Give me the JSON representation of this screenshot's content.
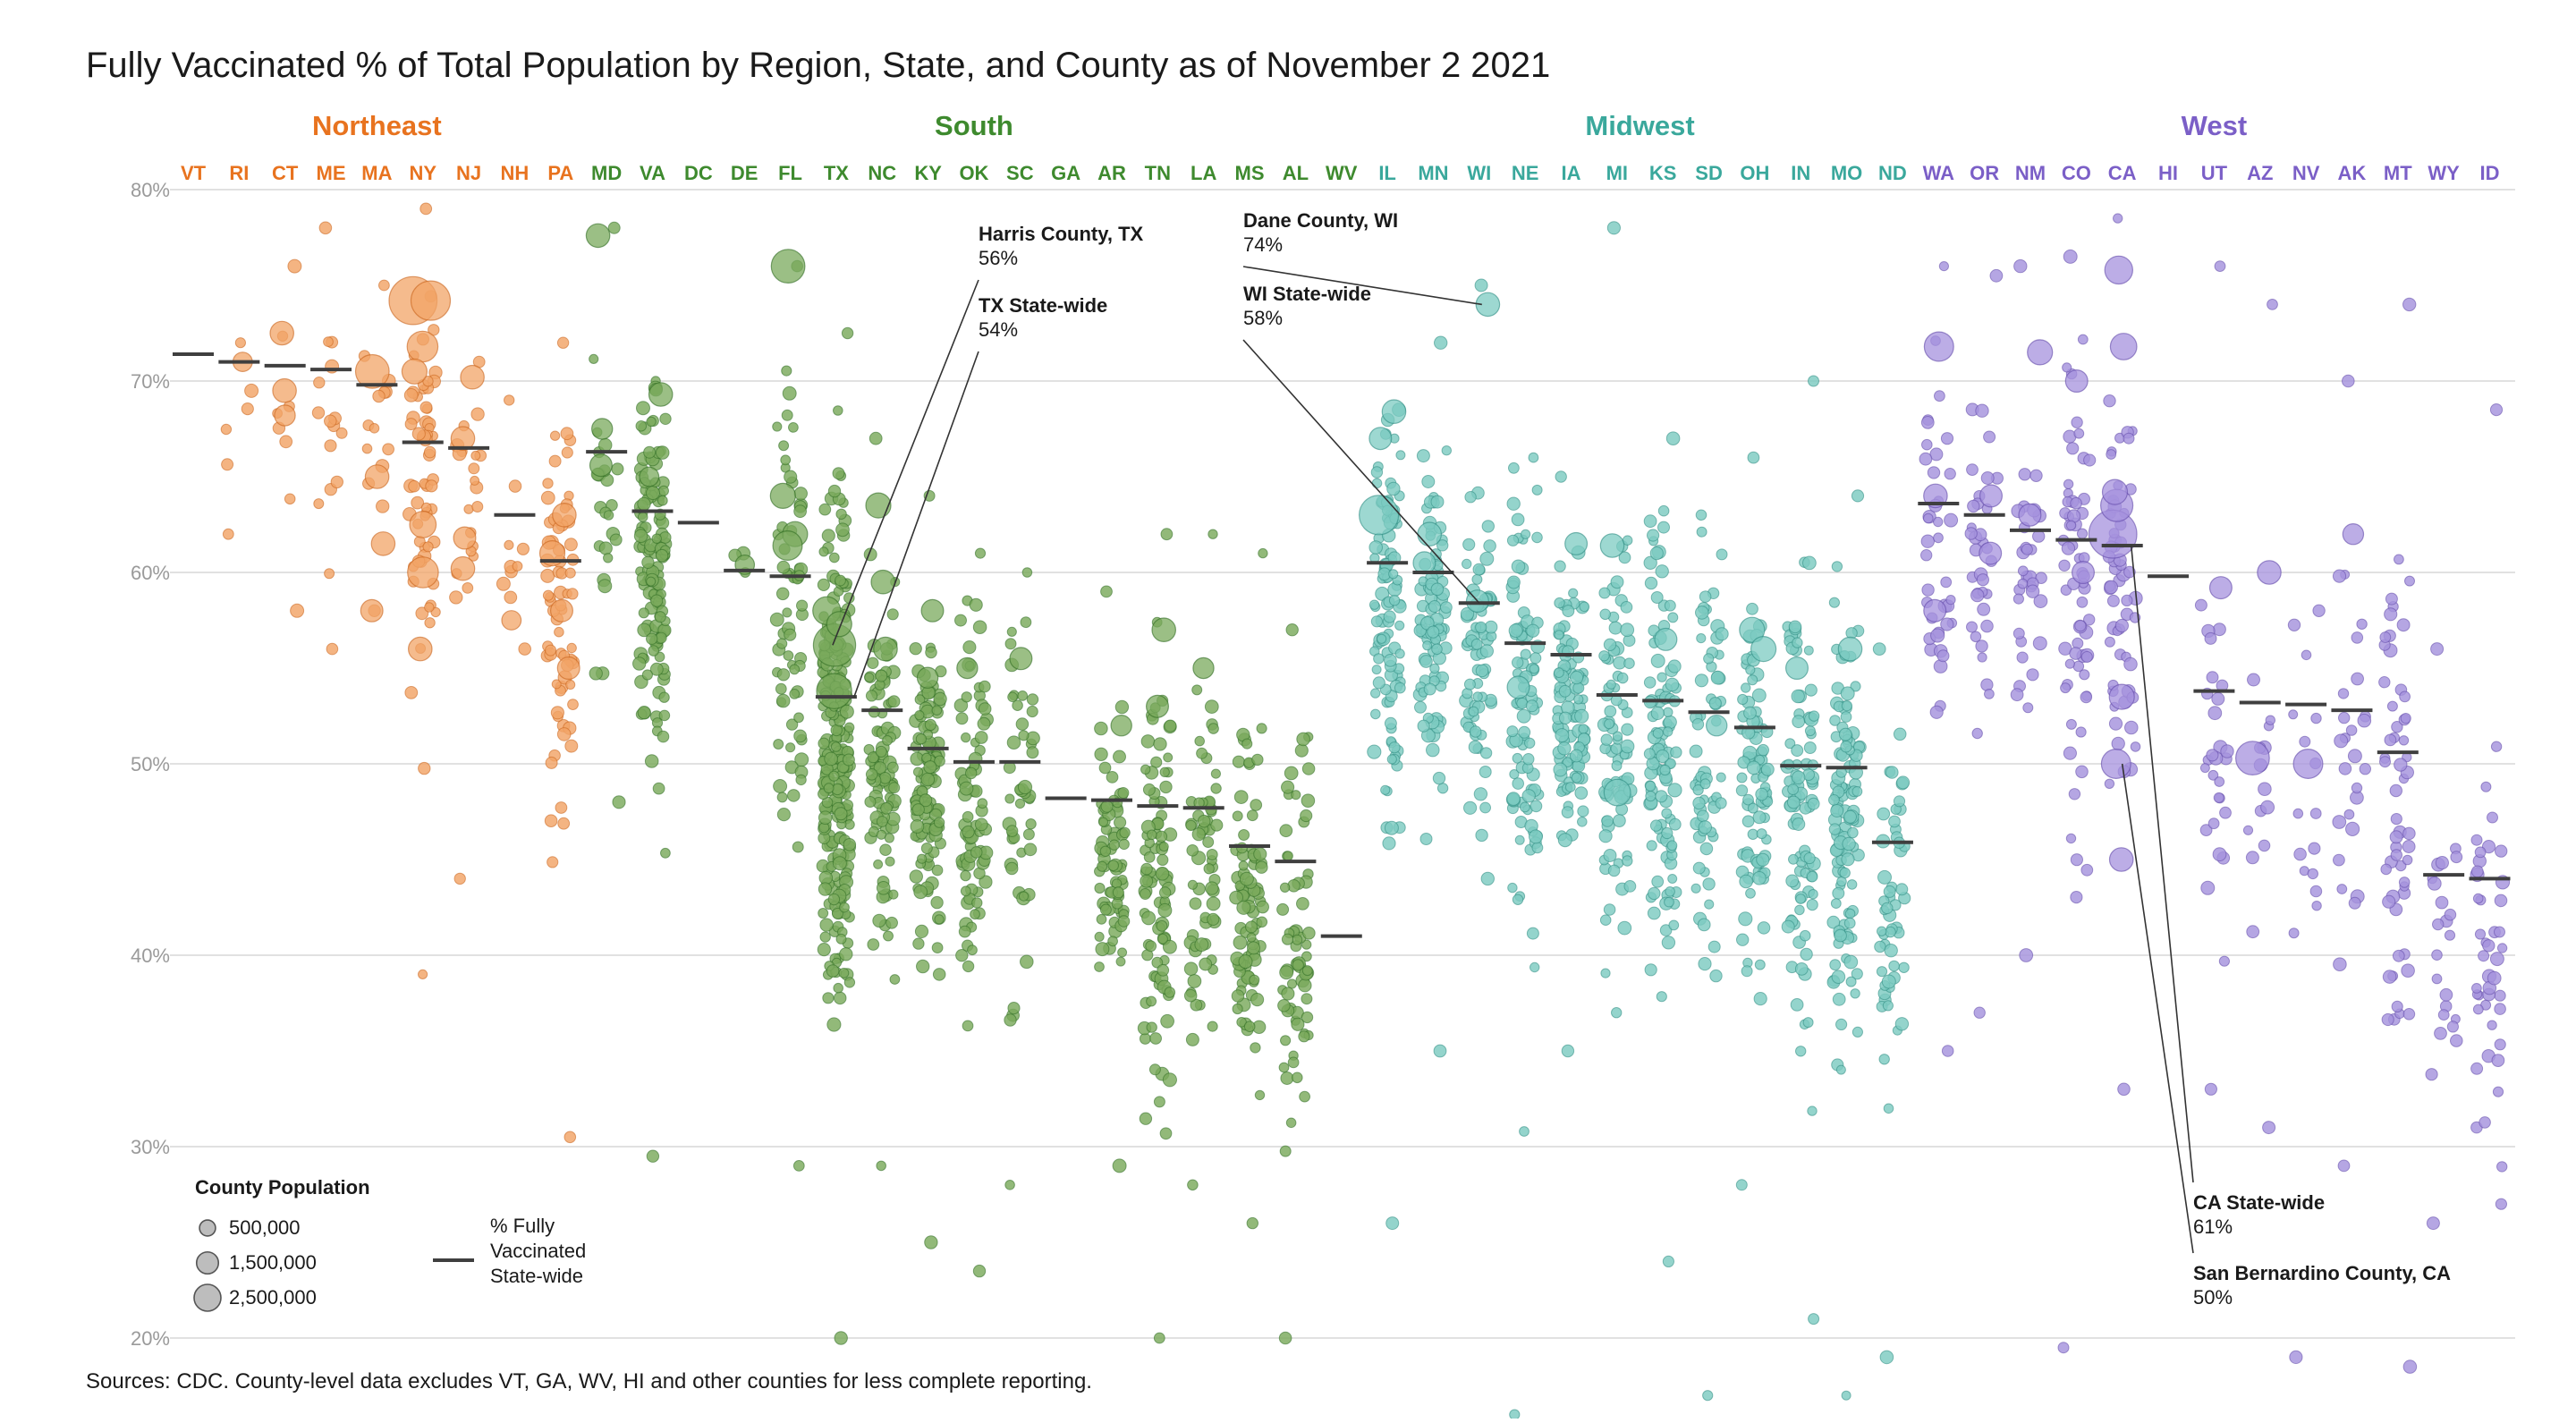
{
  "chart_data": {
    "type": "scatter",
    "title": "Fully Vaccinated % of Total Population by Region, State, and County as of November 2 2021",
    "source": "Sources: CDC. County-level data excludes VT, GA, WV, HI and other counties for less complete reporting.",
    "ylim": [
      20,
      80
    ],
    "y_ticks": [
      20,
      30,
      40,
      50,
      60,
      70,
      80
    ],
    "y_tick_labels": [
      "20%",
      "30%",
      "40%",
      "50%",
      "60%",
      "70%",
      "80%"
    ],
    "grid": true,
    "regions": [
      {
        "name": "Northeast",
        "color": "#e8731f",
        "states": [
          "VT",
          "RI",
          "CT",
          "ME",
          "MA",
          "NY",
          "NJ",
          "NH",
          "PA"
        ]
      },
      {
        "name": "South",
        "color": "#3e8a2e",
        "states": [
          "MD",
          "VA",
          "DC",
          "DE",
          "FL",
          "TX",
          "NC",
          "KY",
          "OK",
          "SC",
          "GA",
          "AR",
          "TN",
          "LA",
          "MS",
          "AL",
          "WV"
        ]
      },
      {
        "name": "Midwest",
        "color": "#3aa89c",
        "states": [
          "IL",
          "MN",
          "WI",
          "NE",
          "IA",
          "MI",
          "KS",
          "SD",
          "OH",
          "IN",
          "MO",
          "ND"
        ]
      },
      {
        "name": "West",
        "color": "#7b5fc7",
        "states": [
          "WA",
          "OR",
          "NM",
          "CO",
          "CA",
          "HI",
          "UT",
          "AZ",
          "NV",
          "AK",
          "MT",
          "WY",
          "ID"
        ]
      }
    ],
    "point_fills": {
      "Northeast": "#f2a467",
      "South": "#7aaa5c",
      "Midwest": "#7ccbc1",
      "West": "#a592dd"
    },
    "point_strokes": {
      "Northeast": "#c8621a",
      "South": "#2e6b22",
      "Midwest": "#2b8a80",
      "West": "#6048a8"
    },
    "states": [
      {
        "code": "VT",
        "region": "Northeast",
        "statewide": 71.4,
        "range": null,
        "n": 0,
        "big": []
      },
      {
        "code": "RI",
        "region": "Northeast",
        "statewide": 71.0,
        "range": [
          62,
          72
        ],
        "n": 6,
        "big": [
          [
            71,
            0.6
          ]
        ]
      },
      {
        "code": "CT",
        "region": "Northeast",
        "statewide": 70.8,
        "range": [
          58,
          76
        ],
        "n": 8,
        "big": [
          [
            72.5,
            0.9
          ],
          [
            69.5,
            0.9
          ],
          [
            68.2,
            0.7
          ]
        ]
      },
      {
        "code": "ME",
        "region": "Northeast",
        "statewide": 70.6,
        "range": [
          56,
          78
        ],
        "n": 16,
        "big": []
      },
      {
        "code": "MA",
        "region": "Northeast",
        "statewide": 69.8,
        "range": [
          58,
          75
        ],
        "n": 14,
        "big": [
          [
            70.5,
            1.6
          ],
          [
            65,
            0.9
          ],
          [
            61.5,
            0.9
          ],
          [
            58,
            0.8
          ]
        ]
      },
      {
        "code": "NY",
        "region": "Northeast",
        "statewide": 66.8,
        "range": [
          39,
          79
        ],
        "n": 62,
        "big": [
          [
            74.2,
            2.6
          ],
          [
            74.2,
            2.0
          ],
          [
            71.8,
            1.4
          ],
          [
            70.5,
            1.0
          ],
          [
            60,
            1.4
          ],
          [
            62.5,
            1.1
          ],
          [
            56,
            0.9
          ]
        ]
      },
      {
        "code": "NJ",
        "region": "Northeast",
        "statewide": 66.5,
        "range": [
          44,
          71
        ],
        "n": 21,
        "big": [
          [
            70.2,
            0.9
          ],
          [
            67,
            0.9
          ],
          [
            61.8,
            0.8
          ],
          [
            60.2,
            0.9
          ]
        ]
      },
      {
        "code": "NH",
        "region": "Northeast",
        "statewide": 63.0,
        "range": [
          56,
          69
        ],
        "n": 10,
        "big": [
          [
            57.5,
            0.6
          ]
        ]
      },
      {
        "code": "PA",
        "region": "Northeast",
        "statewide": 60.6,
        "range": [
          30.5,
          72
        ],
        "n": 67,
        "big": [
          [
            63,
            0.9
          ],
          [
            61,
            1.0
          ],
          [
            58,
            0.8
          ],
          [
            55,
            0.8
          ]
        ]
      },
      {
        "code": "MD",
        "region": "South",
        "statewide": 66.3,
        "range": [
          48,
          78
        ],
        "n": 24,
        "big": [
          [
            77.6,
            0.9
          ],
          [
            67.5,
            0.7
          ],
          [
            65.6,
            0.8
          ]
        ]
      },
      {
        "code": "VA",
        "region": "South",
        "statewide": 63.2,
        "range": [
          29.5,
          70
        ],
        "n": 133,
        "big": [
          [
            69.3,
            0.9
          ],
          [
            65,
            0.6
          ]
        ]
      },
      {
        "code": "DC",
        "region": "South",
        "statewide": 62.6,
        "range": null,
        "n": 0,
        "big": []
      },
      {
        "code": "DE",
        "region": "South",
        "statewide": 60.1,
        "range": [
          60,
          61
        ],
        "n": 3,
        "big": [
          [
            60.4,
            0.6
          ]
        ]
      },
      {
        "code": "FL",
        "region": "South",
        "statewide": 59.8,
        "range": [
          29,
          76
        ],
        "n": 67,
        "big": [
          [
            76,
            1.6
          ],
          [
            64,
            1.0
          ],
          [
            62,
            1.0
          ],
          [
            61.4,
            1.3
          ]
        ]
      },
      {
        "code": "TX",
        "region": "South",
        "statewide": 53.5,
        "range": [
          20,
          72.5
        ],
        "n": 254,
        "big": [
          [
            56.2,
            2.2
          ],
          [
            53.8,
            1.7
          ],
          [
            58,
            1.2
          ],
          [
            57.3,
            1.0
          ]
        ]
      },
      {
        "code": "NC",
        "region": "South",
        "statewide": 52.8,
        "range": [
          29,
          67
        ],
        "n": 100,
        "big": [
          [
            63.5,
            1.0
          ],
          [
            59.5,
            0.9
          ],
          [
            56,
            0.9
          ]
        ]
      },
      {
        "code": "KY",
        "region": "South",
        "statewide": 50.8,
        "range": [
          25,
          64
        ],
        "n": 120,
        "big": [
          [
            58,
            0.8
          ],
          [
            54.5,
            0.7
          ]
        ]
      },
      {
        "code": "OK",
        "region": "South",
        "statewide": 50.1,
        "range": [
          23.5,
          61
        ],
        "n": 77,
        "big": [
          [
            55,
            0.7
          ]
        ]
      },
      {
        "code": "SC",
        "region": "South",
        "statewide": 50.1,
        "range": [
          28,
          60
        ],
        "n": 46,
        "big": [
          [
            55.5,
            0.8
          ]
        ]
      },
      {
        "code": "GA",
        "region": "South",
        "statewide": 48.2,
        "range": null,
        "n": 0,
        "big": []
      },
      {
        "code": "AR",
        "region": "South",
        "statewide": 48.1,
        "range": [
          29,
          59
        ],
        "n": 75,
        "big": [
          [
            52,
            0.7
          ]
        ]
      },
      {
        "code": "TN",
        "region": "South",
        "statewide": 47.8,
        "range": [
          20,
          62
        ],
        "n": 95,
        "big": [
          [
            57,
            0.9
          ],
          [
            53,
            0.8
          ]
        ]
      },
      {
        "code": "LA",
        "region": "South",
        "statewide": 47.7,
        "range": [
          28,
          62
        ],
        "n": 64,
        "big": [
          [
            55,
            0.7
          ]
        ]
      },
      {
        "code": "MS",
        "region": "South",
        "statewide": 45.7,
        "range": [
          26,
          61
        ],
        "n": 82,
        "big": []
      },
      {
        "code": "AL",
        "region": "South",
        "statewide": 44.9,
        "range": [
          20,
          57
        ],
        "n": 67,
        "big": []
      },
      {
        "code": "WV",
        "region": "South",
        "statewide": 41.0,
        "range": null,
        "n": 0,
        "big": []
      },
      {
        "code": "IL",
        "region": "Midwest",
        "statewide": 60.5,
        "range": [
          26,
          68.5
        ],
        "n": 102,
        "big": [
          [
            63,
            2.0
          ],
          [
            68.4,
            0.9
          ],
          [
            67,
            0.8
          ]
        ]
      },
      {
        "code": "MN",
        "region": "Midwest",
        "statewide": 60.0,
        "range": [
          35,
          72
        ],
        "n": 87,
        "big": [
          [
            62,
            0.9
          ],
          [
            60.5,
            0.8
          ]
        ]
      },
      {
        "code": "WI",
        "region": "Midwest",
        "statewide": 58.4,
        "range": [
          44,
          75
        ],
        "n": 72,
        "big": [
          [
            74,
            0.9
          ],
          [
            58.5,
            0.8
          ]
        ]
      },
      {
        "code": "NE",
        "region": "Midwest",
        "statewide": 56.3,
        "range": [
          16,
          66
        ],
        "n": 93,
        "big": [
          [
            54,
            0.8
          ]
        ]
      },
      {
        "code": "IA",
        "region": "Midwest",
        "statewide": 55.7,
        "range": [
          35,
          65
        ],
        "n": 99,
        "big": [
          [
            61.5,
            0.8
          ]
        ]
      },
      {
        "code": "MI",
        "region": "Midwest",
        "statewide": 53.6,
        "range": [
          37,
          78
        ],
        "n": 83,
        "big": [
          [
            61.4,
            0.9
          ],
          [
            48.5,
            1.1
          ]
        ]
      },
      {
        "code": "KS",
        "region": "Midwest",
        "statewide": 53.3,
        "range": [
          24,
          67
        ],
        "n": 105,
        "big": [
          [
            56.5,
            0.8
          ]
        ]
      },
      {
        "code": "SD",
        "region": "Midwest",
        "statewide": 52.7,
        "range": [
          17,
          63
        ],
        "n": 66,
        "big": [
          [
            52,
            0.7
          ]
        ]
      },
      {
        "code": "OH",
        "region": "Midwest",
        "statewide": 51.9,
        "range": [
          28,
          66
        ],
        "n": 88,
        "big": [
          [
            57,
            1.0
          ],
          [
            56,
            1.0
          ]
        ]
      },
      {
        "code": "IN",
        "region": "Midwest",
        "statewide": 49.9,
        "range": [
          21,
          70
        ],
        "n": 92,
        "big": [
          [
            55,
            0.8
          ]
        ]
      },
      {
        "code": "MO",
        "region": "Midwest",
        "statewide": 49.8,
        "range": [
          17,
          64
        ],
        "n": 115,
        "big": [
          [
            56,
            0.9
          ]
        ]
      },
      {
        "code": "ND",
        "region": "Midwest",
        "statewide": 45.9,
        "range": [
          19,
          56
        ],
        "n": 53,
        "big": []
      },
      {
        "code": "WA",
        "region": "West",
        "statewide": 63.6,
        "range": [
          35,
          76
        ],
        "n": 39,
        "big": [
          [
            71.8,
            1.3
          ],
          [
            64,
            0.9
          ],
          [
            58,
            0.8
          ]
        ]
      },
      {
        "code": "OR",
        "region": "West",
        "statewide": 63.0,
        "range": [
          37,
          75.5
        ],
        "n": 36,
        "big": [
          [
            64,
            0.8
          ],
          [
            61,
            0.8
          ]
        ]
      },
      {
        "code": "NM",
        "region": "West",
        "statewide": 62.2,
        "range": [
          40,
          76
        ],
        "n": 33,
        "big": [
          [
            71.5,
            1.0
          ],
          [
            63,
            0.8
          ]
        ]
      },
      {
        "code": "CO",
        "region": "West",
        "statewide": 61.7,
        "range": [
          19.5,
          76.5
        ],
        "n": 64,
        "big": [
          [
            70,
            0.8
          ],
          [
            60,
            0.8
          ]
        ]
      },
      {
        "code": "CA",
        "region": "West",
        "statewide": 61.4,
        "range": [
          33,
          78.5
        ],
        "n": 58,
        "big": [
          [
            62,
            2.6
          ],
          [
            63.5,
            1.5
          ],
          [
            75.8,
            1.2
          ],
          [
            71.8,
            1.1
          ],
          [
            50,
            1.3
          ],
          [
            53.5,
            1.0
          ],
          [
            45,
            0.9
          ],
          [
            64.2,
            1.0
          ]
        ]
      },
      {
        "code": "HI",
        "region": "West",
        "statewide": 59.8,
        "range": null,
        "n": 0,
        "big": []
      },
      {
        "code": "UT",
        "region": "West",
        "statewide": 53.8,
        "range": [
          33,
          76
        ],
        "n": 29,
        "big": [
          [
            59.2,
            0.8
          ]
        ]
      },
      {
        "code": "AZ",
        "region": "West",
        "statewide": 53.2,
        "range": [
          31,
          74
        ],
        "n": 15,
        "big": [
          [
            50.3,
            1.6
          ],
          [
            60,
            0.9
          ]
        ]
      },
      {
        "code": "NV",
        "region": "West",
        "statewide": 53.1,
        "range": [
          19,
          58
        ],
        "n": 17,
        "big": [
          [
            50,
            1.3
          ]
        ]
      },
      {
        "code": "AK",
        "region": "West",
        "statewide": 52.8,
        "range": [
          29,
          70
        ],
        "n": 27,
        "big": [
          [
            62,
            0.7
          ]
        ]
      },
      {
        "code": "MT",
        "region": "West",
        "statewide": 50.6,
        "range": [
          18.5,
          74
        ],
        "n": 56,
        "big": []
      },
      {
        "code": "WY",
        "region": "West",
        "statewide": 44.2,
        "range": [
          26,
          56
        ],
        "n": 23,
        "big": []
      },
      {
        "code": "ID",
        "region": "West",
        "statewide": 44.0,
        "range": [
          27,
          68.5
        ],
        "n": 44,
        "big": []
      }
    ],
    "annotations": [
      {
        "name": "Harris County, TX",
        "value": "56%",
        "state": "TX",
        "y": 56.2,
        "dx": -4,
        "label_x": 1094,
        "label_y": 269
      },
      {
        "name": "TX State-wide",
        "value": "54%",
        "state": "TX",
        "y": 53.5,
        "dx": 20,
        "label_x": 1094,
        "label_y": 349
      },
      {
        "name": "Dane County, WI",
        "value": "74%",
        "state": "WI",
        "y": 74,
        "dx": 3,
        "label_x": 1390,
        "label_y": 254
      },
      {
        "name": "WI State-wide",
        "value": "58%",
        "state": "WI",
        "y": 58.4,
        "dx": 0,
        "label_x": 1390,
        "label_y": 336
      },
      {
        "name": "CA State-wide",
        "value": "61%",
        "state": "CA",
        "y": 61.4,
        "dx": 10,
        "label_x": 2452,
        "label_y": 1352
      },
      {
        "name": "San Bernardino County, CA",
        "value": "50%",
        "state": "CA",
        "y": 50,
        "dx": 0,
        "label_x": 2452,
        "label_y": 1431
      }
    ],
    "legend": {
      "size_title": "County Population",
      "size_entries": [
        {
          "label": "500,000",
          "r": 9
        },
        {
          "label": "1,500,000",
          "r": 15
        },
        {
          "label": "2,500,000",
          "r": 20
        }
      ],
      "line_label": [
        "% Fully",
        "Vaccinated",
        "State-wide"
      ]
    }
  }
}
